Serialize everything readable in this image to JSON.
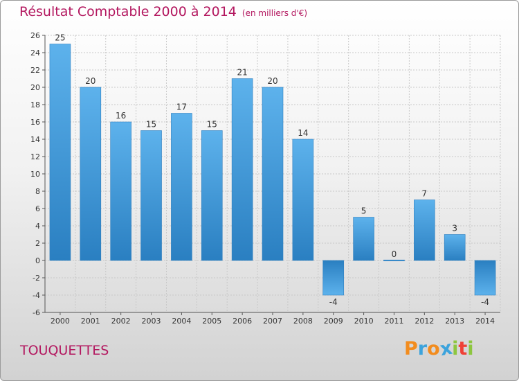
{
  "header": {
    "title": "Résultat Comptable 2000 à 2014",
    "subtitle": "(en milliers d'€)"
  },
  "footer": {
    "commune": "TOUQUETTES",
    "brand": [
      "P",
      "r",
      "o",
      "x",
      "i",
      "t",
      "i"
    ]
  },
  "colors": {
    "bar_top": "#5db2ec",
    "bar_bottom": "#2a7fc1",
    "title": "#b3175f"
  },
  "chart_data": {
    "type": "bar",
    "title": "Résultat Comptable 2000 à 2014",
    "categories": [
      "2000",
      "2001",
      "2002",
      "2003",
      "2004",
      "2005",
      "2006",
      "2007",
      "2008",
      "2009",
      "2010",
      "2011",
      "2012",
      "2013",
      "2014"
    ],
    "values": [
      25,
      20,
      16,
      15,
      17,
      15,
      21,
      20,
      14,
      -4,
      5,
      0,
      7,
      3,
      -4
    ],
    "ylim": [
      -6,
      26
    ],
    "yticks": [
      -6,
      -4,
      -2,
      0,
      2,
      4,
      6,
      8,
      10,
      12,
      14,
      16,
      18,
      20,
      22,
      24,
      26
    ],
    "grid": true
  }
}
